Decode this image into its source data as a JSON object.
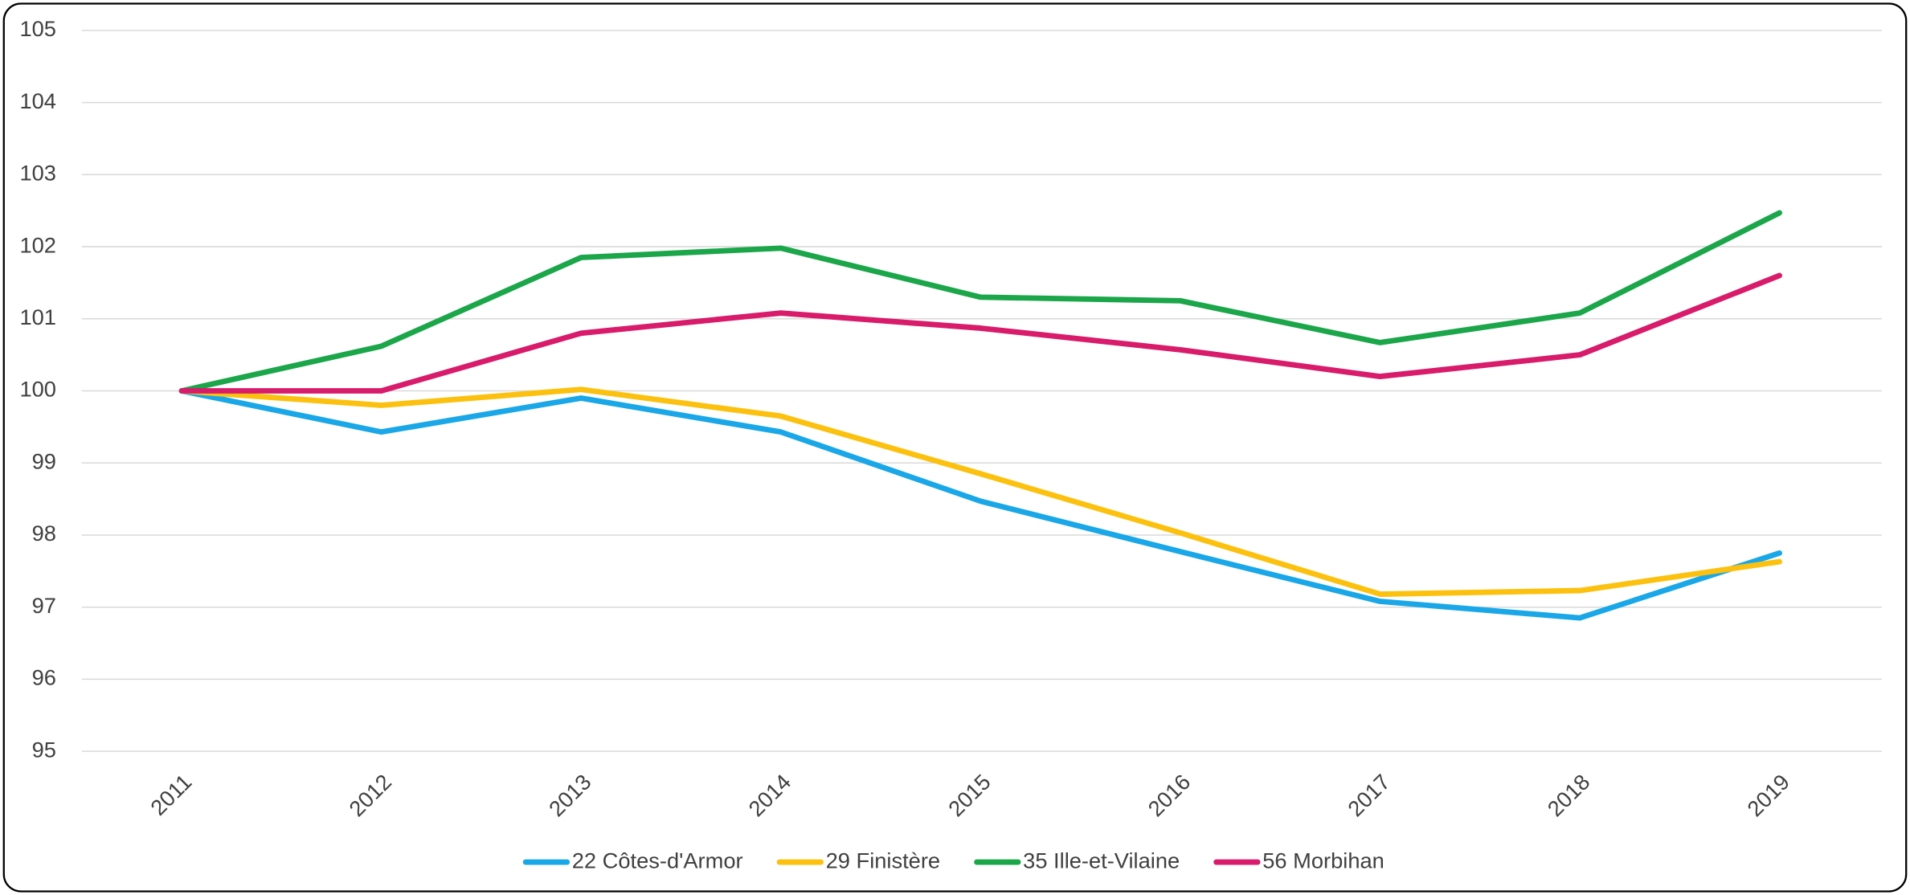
{
  "chart_data": {
    "type": "line",
    "categories": [
      "2011",
      "2012",
      "2013",
      "2014",
      "2015",
      "2016",
      "2017",
      "2018",
      "2019"
    ],
    "series": [
      {
        "name": "22 Côtes-d'Armor",
        "color": "#1aa7e8",
        "values": [
          100,
          99.43,
          99.9,
          99.43,
          98.47,
          97.77,
          97.08,
          96.85,
          97.75
        ]
      },
      {
        "name": "29 Finistère",
        "color": "#fcc10f",
        "values": [
          100,
          99.8,
          100.02,
          99.65,
          98.85,
          98.03,
          97.18,
          97.23,
          97.63
        ]
      },
      {
        "name": "35 Ille-et-Vilaine",
        "color": "#1ba64a",
        "values": [
          100,
          100.62,
          101.85,
          101.98,
          101.3,
          101.25,
          100.67,
          101.08,
          102.47
        ]
      },
      {
        "name": "56 Morbihan",
        "color": "#d81b6a",
        "values": [
          100,
          100,
          100.8,
          101.08,
          100.87,
          100.57,
          100.2,
          100.5,
          101.6
        ]
      }
    ],
    "ylim": [
      95,
      105
    ],
    "yticks": [
      95,
      96,
      97,
      98,
      99,
      100,
      101,
      102,
      103,
      104,
      105
    ],
    "grid": true,
    "legend": "bottom"
  }
}
